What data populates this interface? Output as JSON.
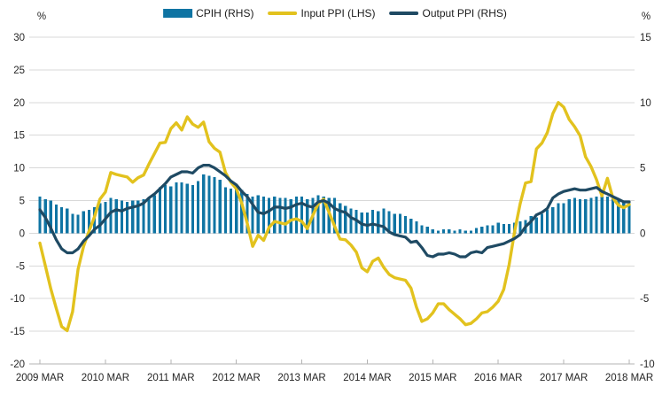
{
  "chart_data": {
    "type": "combo",
    "title": "",
    "x_axis": {
      "start": "2009-03",
      "end": "2018-03",
      "frequency": "monthly",
      "tick_labels": [
        "2009 MAR",
        "2010 MAR",
        "2011 MAR",
        "2012 MAR",
        "2013 MAR",
        "2014 MAR",
        "2015 MAR",
        "2016 MAR",
        "2017 MAR",
        "2018 MAR"
      ]
    },
    "axes": {
      "left": {
        "unit": "%",
        "min": -20,
        "max": 30,
        "step": 5,
        "tick_labels": [
          30,
          25,
          20,
          15,
          10,
          5,
          0,
          -5,
          -10,
          -15,
          -20
        ]
      },
      "right": {
        "unit": "%",
        "min": -10,
        "max": 15,
        "step": 5,
        "tick_labels": [
          15,
          10,
          5,
          0,
          -5,
          -10
        ]
      }
    },
    "grid": {
      "on": true,
      "gridline_color": "#d9d9d9",
      "axis_line_color": "#b3b3b3"
    },
    "legend_position": "top-center",
    "series": [
      {
        "name": "CPIH (RHS)",
        "type": "bar",
        "axis": "right",
        "color": "#0f74a3",
        "values": [
          2.8,
          2.6,
          2.5,
          2.2,
          2.0,
          1.9,
          1.5,
          1.4,
          1.7,
          1.8,
          2.0,
          2.3,
          2.4,
          2.7,
          2.6,
          2.5,
          2.4,
          2.5,
          2.5,
          2.6,
          2.7,
          2.9,
          3.5,
          3.7,
          3.6,
          3.9,
          3.9,
          3.8,
          3.7,
          4.0,
          4.5,
          4.4,
          4.3,
          4.1,
          3.5,
          3.4,
          3.5,
          3.3,
          3.0,
          2.8,
          2.9,
          2.8,
          2.7,
          2.8,
          2.7,
          2.7,
          2.6,
          2.8,
          2.8,
          2.6,
          2.7,
          2.9,
          2.8,
          2.7,
          2.7,
          2.3,
          2.1,
          1.9,
          1.8,
          1.6,
          1.6,
          1.8,
          1.7,
          1.9,
          1.7,
          1.5,
          1.5,
          1.3,
          1.1,
          0.9,
          0.6,
          0.5,
          0.3,
          0.2,
          0.3,
          0.3,
          0.2,
          0.3,
          0.2,
          0.2,
          0.4,
          0.5,
          0.6,
          0.6,
          0.8,
          0.7,
          0.7,
          0.8,
          0.9,
          1.0,
          1.3,
          1.2,
          1.5,
          1.8,
          2.0,
          2.3,
          2.3,
          2.6,
          2.7,
          2.6,
          2.6,
          2.7,
          2.8,
          2.8,
          2.8,
          2.7,
          2.5,
          2.5,
          2.3
        ]
      },
      {
        "name": "Input PPI (LHS)",
        "type": "line",
        "axis": "left",
        "color": "#e2c21e",
        "values": [
          -1.5,
          -5.0,
          -8.5,
          -11.5,
          -14.3,
          -14.9,
          -12.0,
          -5.5,
          -2.0,
          0.3,
          2.5,
          5.2,
          6.3,
          9.3,
          9.0,
          8.8,
          8.6,
          7.8,
          8.5,
          8.9,
          10.6,
          12.2,
          13.8,
          13.9,
          16.0,
          16.9,
          15.8,
          17.8,
          16.7,
          16.2,
          17.0,
          14.0,
          13.0,
          12.4,
          9.3,
          7.8,
          6.8,
          4.6,
          1.5,
          -2.0,
          -0.3,
          -1.1,
          0.9,
          1.8,
          1.6,
          1.4,
          2.0,
          2.2,
          1.8,
          0.7,
          2.7,
          4.5,
          5.2,
          3.2,
          1.1,
          -0.9,
          -1.0,
          -1.8,
          -2.9,
          -5.3,
          -5.9,
          -4.3,
          -3.8,
          -5.2,
          -6.3,
          -6.8,
          -7.0,
          -7.2,
          -8.4,
          -11.3,
          -13.5,
          -13.1,
          -12.2,
          -10.8,
          -10.8,
          -11.7,
          -12.4,
          -13.1,
          -14.0,
          -13.8,
          -13.1,
          -12.2,
          -12.0,
          -11.3,
          -10.4,
          -8.6,
          -4.8,
          0.3,
          4.5,
          7.7,
          7.9,
          12.9,
          13.8,
          15.4,
          18.3,
          20.0,
          19.3,
          17.4,
          16.3,
          14.9,
          11.7,
          10.2,
          8.2,
          5.7,
          8.4,
          5.4,
          4.3,
          3.9,
          4.4
        ]
      },
      {
        "name": "Output PPI (RHS)",
        "type": "line",
        "axis": "right",
        "color": "#1f4a63",
        "values": [
          1.8,
          1.2,
          0.4,
          -0.5,
          -1.2,
          -1.5,
          -1.5,
          -1.2,
          -0.6,
          -0.2,
          0.3,
          0.6,
          1.1,
          1.6,
          1.8,
          1.7,
          1.9,
          2.0,
          2.1,
          2.3,
          2.7,
          3.0,
          3.4,
          3.8,
          4.3,
          4.5,
          4.7,
          4.7,
          4.6,
          5.0,
          5.2,
          5.2,
          5.0,
          4.7,
          4.4,
          4.0,
          3.7,
          3.2,
          2.8,
          2.2,
          1.6,
          1.5,
          1.7,
          2.0,
          2.0,
          1.9,
          2.0,
          2.2,
          2.3,
          2.1,
          2.0,
          2.4,
          2.5,
          2.3,
          1.9,
          1.7,
          1.6,
          1.2,
          1.0,
          0.7,
          0.6,
          0.7,
          0.6,
          0.5,
          0.1,
          -0.1,
          -0.2,
          -0.3,
          -0.7,
          -0.6,
          -1.1,
          -1.7,
          -1.8,
          -1.6,
          -1.6,
          -1.5,
          -1.6,
          -1.8,
          -1.8,
          -1.5,
          -1.4,
          -1.5,
          -1.1,
          -1.0,
          -0.9,
          -0.8,
          -0.6,
          -0.4,
          -0.1,
          0.5,
          0.9,
          1.4,
          1.6,
          1.9,
          2.7,
          3.0,
          3.2,
          3.3,
          3.4,
          3.3,
          3.3,
          3.4,
          3.5,
          3.2,
          3.0,
          2.8,
          2.6,
          2.4,
          2.4
        ]
      }
    ]
  }
}
